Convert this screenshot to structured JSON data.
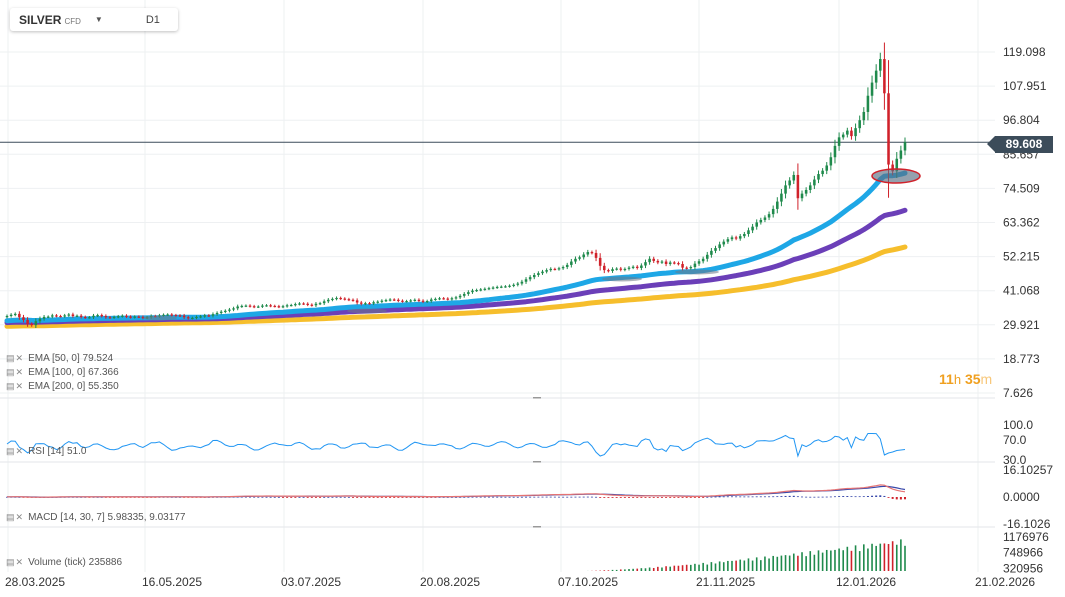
{
  "header": {
    "symbol": "SILVER",
    "instrument_type": "CFD",
    "timeframe": "D1"
  },
  "last_price": "89.608",
  "countdown": {
    "hours": "11",
    "hours_unit": "h",
    "minutes": "35",
    "minutes_unit": "m"
  },
  "indicators": {
    "ema50": "EMA [50, 0] 79.524",
    "ema100": "EMA [100, 0] 67.366",
    "ema200": "EMA [200, 0] 55.350",
    "rsi": "RSI [14] 51.0",
    "macd": "MACD [14, 30, 7] 5.98335, 9.03177",
    "volume": "Volume (tick) 235886"
  },
  "colors": {
    "ema50": "#1ea7e6",
    "ema100": "#6b3fb8",
    "ema200": "#f6be2c",
    "bull_candle": "#1f8a4c",
    "bear_candle": "#d0212a",
    "rsi_line": "#2196f3",
    "macd_line": "#e57373",
    "signal_line": "#3949ab",
    "price_line": "#3c4c5a",
    "countdown": "#f0a020"
  },
  "chart_data": [
    {
      "type": "candlestick",
      "panel": "price",
      "x_tick_labels": [
        "28.03.2025",
        "16.05.2025",
        "03.07.2025",
        "20.08.2025",
        "07.10.2025",
        "21.11.2025",
        "12.01.2026",
        "21.02.2026"
      ],
      "y_tick_labels": [
        "119.098",
        "107.951",
        "96.804",
        "85.657",
        "74.509",
        "63.362",
        "52.215",
        "41.068",
        "29.921",
        "18.773",
        "7.626"
      ],
      "ylim": [
        7.626,
        119.098
      ],
      "close": [
        32.8,
        33.2,
        33.5,
        32.4,
        31.5,
        30.2,
        29.8,
        31.1,
        31.9,
        32.5,
        32.6,
        33.0,
        32.8,
        32.7,
        33.0,
        33.3,
        32.8,
        32.9,
        32.5,
        32.3,
        32.4,
        32.9,
        33.1,
        32.8,
        32.4,
        32.3,
        32.5,
        32.7,
        32.9,
        32.6,
        32.4,
        32.6,
        32.5,
        32.2,
        32.4,
        32.8,
        32.7,
        33.0,
        33.2,
        33.3,
        33.1,
        33.0,
        32.9,
        32.4,
        32.1,
        32.2,
        32.5,
        32.7,
        33.0,
        32.9,
        33.4,
        33.8,
        34.2,
        34.5,
        34.9,
        35.3,
        35.9,
        36.1,
        36.2,
        36.0,
        35.8,
        35.9,
        36.2,
        36.3,
        36.1,
        36.0,
        35.8,
        36.0,
        36.3,
        36.4,
        36.7,
        36.9,
        36.8,
        36.5,
        36.3,
        36.8,
        37.0,
        37.6,
        38.1,
        38.4,
        38.7,
        38.5,
        38.3,
        38.1,
        37.9,
        37.2,
        36.8,
        37.0,
        36.9,
        37.3,
        37.5,
        37.8,
        38.0,
        38.2,
        38.1,
        37.8,
        37.6,
        37.7,
        37.9,
        38.1,
        37.8,
        37.5,
        37.7,
        38.2,
        38.4,
        38.6,
        38.5,
        38.3,
        38.6,
        38.9,
        39.4,
        40.0,
        40.6,
        41.1,
        41.3,
        41.5,
        41.7,
        41.9,
        42.1,
        42.3,
        42.4,
        42.5,
        42.7,
        43.0,
        43.4,
        44.0,
        44.8,
        45.5,
        46.2,
        46.8,
        47.3,
        47.8,
        48.2,
        48.1,
        48.4,
        48.8,
        49.5,
        50.6,
        51.5,
        52.0,
        52.9,
        53.7,
        53.4,
        51.8,
        49.2,
        47.8,
        47.5,
        48.1,
        48.3,
        47.9,
        48.2,
        48.6,
        48.9,
        48.5,
        49.3,
        50.4,
        51.5,
        50.8,
        50.3,
        50.6,
        49.8,
        50.3,
        50.1,
        49.8,
        48.6,
        48.4,
        48.8,
        49.9,
        50.7,
        51.5,
        52.8,
        54.1,
        55.0,
        56.2,
        57.1,
        57.9,
        58.5,
        58.1,
        58.9,
        59.6,
        60.8,
        62.0,
        63.4,
        64.2,
        65.0,
        66.1,
        67.8,
        70.2,
        72.8,
        75.5,
        77.1,
        78.9,
        71.3,
        72.8,
        74.0,
        75.5,
        77.4,
        79.2,
        80.3,
        82.0,
        84.7,
        88.4,
        91.2,
        92.1,
        93.4,
        91.6,
        94.2,
        96.8,
        99.5,
        104.8,
        109.1,
        113.0,
        116.8,
        105.6,
        82.3,
        80.1,
        84.2,
        86.9,
        89.6
      ]
    },
    {
      "type": "line",
      "panel": "price",
      "name": "EMA [50, 0]",
      "last_value": 79.524
    },
    {
      "type": "line",
      "panel": "price",
      "name": "EMA [100, 0]",
      "last_value": 67.366
    },
    {
      "type": "line",
      "panel": "price",
      "name": "EMA [200, 0]",
      "last_value": 55.35
    },
    {
      "type": "line",
      "panel": "rsi",
      "name": "RSI [14]",
      "last_value": 51.0,
      "y_tick_labels": [
        "100.0",
        "70.0",
        "30.0"
      ],
      "ylim": [
        30,
        100
      ]
    },
    {
      "type": "line",
      "panel": "macd",
      "name": "MACD [14, 30, 7]",
      "values_shown": [
        5.98335,
        9.03177
      ],
      "y_tick_labels": [
        "16.10257",
        "0.0000",
        "-16.1026"
      ],
      "ylim": [
        -16.1026,
        16.10257
      ]
    },
    {
      "type": "bar",
      "panel": "volume",
      "name": "Volume (tick)",
      "last_value": 235886,
      "y_tick_labels": [
        "1176976",
        "748966",
        "320956"
      ]
    }
  ]
}
